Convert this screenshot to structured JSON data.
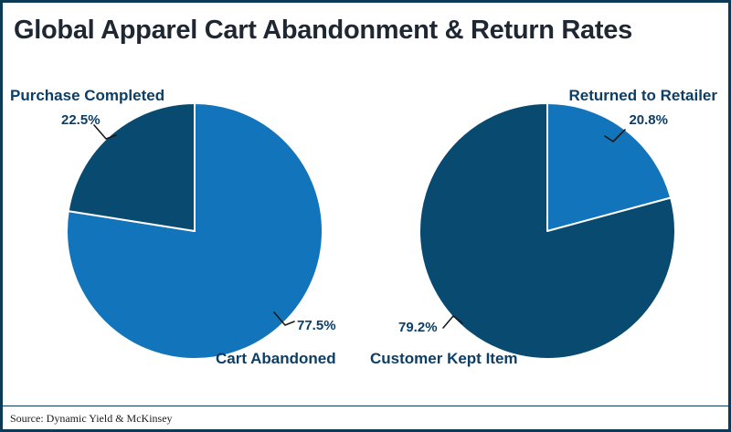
{
  "title": "Global Apparel Cart Abandonment & Return Rates",
  "source": "Source: Dynamic Yield & McKinsey",
  "colors": {
    "dark_navy": "#084a70",
    "bright_blue": "#1274ba",
    "border": "#0d3a57",
    "label_text": "#0c3e66",
    "title_text": "#1f2733",
    "leader_line": "#1a1a1a",
    "source_text": "#1a1a1a",
    "background": "#ffffff"
  },
  "chart_data": [
    {
      "type": "pie",
      "name": "cart-abandonment",
      "start_angle": 0,
      "slices": [
        {
          "label": "Cart Abandoned",
          "value": 77.5,
          "pct": "77.5%",
          "color_key": "bright_blue"
        },
        {
          "label": "Purchase Completed",
          "value": 22.5,
          "pct": "22.5%",
          "color_key": "dark_navy"
        }
      ]
    },
    {
      "type": "pie",
      "name": "return-rates",
      "start_angle": 0,
      "slices": [
        {
          "label": "Returned to Retailer",
          "value": 20.8,
          "pct": "20.8%",
          "color_key": "bright_blue"
        },
        {
          "label": "Customer Kept Item",
          "value": 79.2,
          "pct": "79.2%",
          "color_key": "dark_navy"
        }
      ]
    }
  ]
}
